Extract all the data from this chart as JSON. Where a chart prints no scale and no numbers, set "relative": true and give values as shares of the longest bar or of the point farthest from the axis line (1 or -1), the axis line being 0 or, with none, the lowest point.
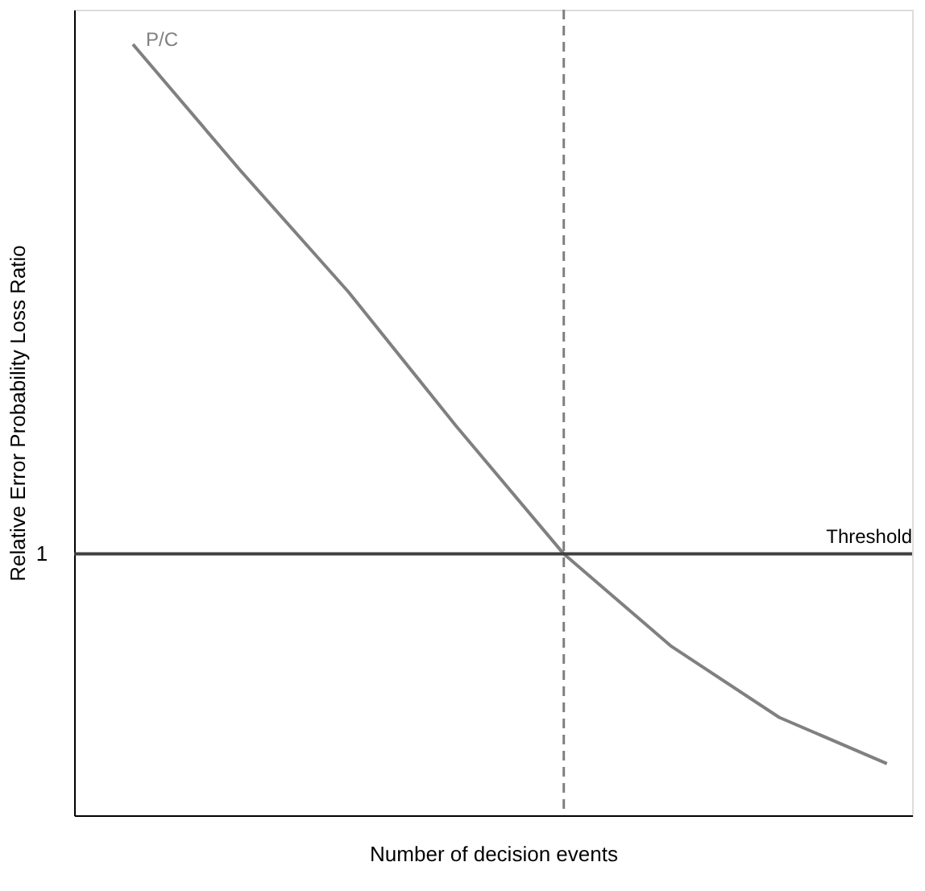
{
  "chart_data": {
    "type": "line",
    "relative": true,
    "xlabel": "Number of decision events",
    "ylabel": "Relative Error Probability  Loss Ratio",
    "categories": [
      null,
      null,
      null,
      null,
      null,
      null,
      null,
      null
    ],
    "series": [
      {
        "name": "P/C",
        "color": "#808080",
        "values": [
          1.0,
          0.836,
          0.679,
          0.505,
          0.339,
          0.219,
          0.127,
          0.067
        ]
      }
    ],
    "ref_lines": [
      {
        "axis": "y",
        "value": 0.339,
        "label": "Threshold",
        "color": "#404040",
        "line_style": "solid"
      }
    ],
    "annotations": [
      "1"
    ]
  }
}
